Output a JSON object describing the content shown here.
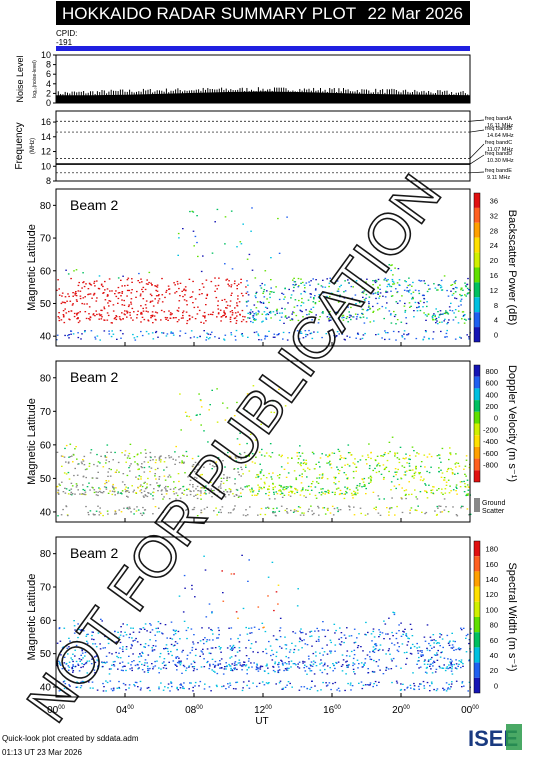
{
  "header": {
    "title": "HOKKAIDO RADAR SUMMARY PLOT",
    "date": "22 Mar 2026",
    "cpid_label": "CPID:",
    "cpid_value": "-191"
  },
  "colors": {
    "header_bg": "#000000",
    "header_text": "#ffffff",
    "cpid_bar": "#2020e0",
    "watermark": "#000000",
    "ground_scatter": "#888888"
  },
  "watermark": "NOT FOR PUBLICATION",
  "footer": {
    "line1": "Quick-look plot created by sddata.adm",
    "line2": "01:13 UT 23 Mar 2026",
    "logo": "ISEE"
  },
  "chart_data": [
    {
      "type": "area",
      "id": "noise",
      "ylabel": "Noise Level",
      "ylabel_sub": "log₁₀(noise-level)",
      "ylim": [
        0,
        10
      ],
      "yticks": [
        "0",
        "2",
        "4",
        "6",
        "8",
        "10"
      ],
      "x": [
        0,
        2,
        4,
        6,
        8,
        10,
        12,
        14,
        16,
        18,
        20,
        22,
        24
      ],
      "values": [
        1.6,
        1.6,
        1.7,
        1.9,
        2.1,
        2.3,
        2.4,
        2.3,
        2.1,
        1.9,
        1.8,
        1.7,
        1.6
      ]
    },
    {
      "type": "line",
      "id": "frequency",
      "ylabel": "Frequency",
      "ylabel_unit": "(MHz)",
      "ylim": [
        8,
        17.5
      ],
      "yticks": [
        "8",
        "10",
        "12",
        "14",
        "16"
      ],
      "bands": [
        {
          "name": "freq bandA",
          "value": "16.11 MHz",
          "freq": 16.11
        },
        {
          "name": "freq bandB",
          "value": "14.64 MHz",
          "freq": 14.64
        },
        {
          "name": "freq bandC",
          "value": "11.07 MHz",
          "freq": 11.07
        },
        {
          "name": "freq bandD",
          "value": "10.30 MHz",
          "freq": 10.3
        },
        {
          "name": "freq bandE",
          "value": "9.11 MHz",
          "freq": 9.11
        }
      ],
      "operating_freq": 10.3
    },
    {
      "type": "heatmap",
      "id": "power",
      "beam_label": "Beam  2",
      "ylabel": "Magnetic Latitude",
      "ylim": [
        37,
        85
      ],
      "yticks": [
        "40",
        "50",
        "60",
        "70",
        "80"
      ],
      "colorbar_label": "Backscatter Power (dB)",
      "colorbar_ticks": [
        "0",
        "4",
        "8",
        "12",
        "16",
        "20",
        "24",
        "28",
        "32",
        "36"
      ],
      "colormap": [
        "#1414b4",
        "#2060f0",
        "#00c0e0",
        "#00c060",
        "#60e000",
        "#d0f000",
        "#ffe000",
        "#ffa000",
        "#ff6020",
        "#e01010"
      ]
    },
    {
      "type": "heatmap",
      "id": "velocity",
      "beam_label": "Beam  2",
      "ylabel": "Magnetic Latitude",
      "ylim": [
        37,
        85
      ],
      "yticks": [
        "40",
        "50",
        "60",
        "70",
        "80"
      ],
      "colorbar_label": "Doppler Velocity (m s⁻¹)",
      "colorbar_ticks": [
        "800",
        "600",
        "400",
        "200",
        "0",
        "-200",
        "-400",
        "-600",
        "-800"
      ],
      "colormap": [
        "#1414b4",
        "#2060f0",
        "#00c0e0",
        "#00c060",
        "#60e000",
        "#d0f000",
        "#ffe000",
        "#ffa000",
        "#ff6020",
        "#e01010"
      ],
      "ground_scatter_label": "Ground Scatter"
    },
    {
      "type": "heatmap",
      "id": "width",
      "beam_label": "Beam  2",
      "ylabel": "Magnetic Latitude",
      "ylim": [
        37,
        85
      ],
      "yticks": [
        "40",
        "50",
        "60",
        "70",
        "80"
      ],
      "colorbar_label": "Spectral Width (m s⁻¹)",
      "colorbar_ticks": [
        "0",
        "20",
        "40",
        "60",
        "80",
        "100",
        "120",
        "140",
        "160",
        "180"
      ],
      "colormap": [
        "#1414b4",
        "#2060f0",
        "#00c0e0",
        "#00c060",
        "#60e000",
        "#d0f000",
        "#ffe000",
        "#ffa000",
        "#ff6020",
        "#e01010"
      ],
      "xlabel": "UT",
      "xticks": [
        "00",
        "04",
        "08",
        "12",
        "16",
        "20",
        "00"
      ],
      "xtick_sup": "00",
      "xlim": [
        0,
        24
      ]
    }
  ]
}
